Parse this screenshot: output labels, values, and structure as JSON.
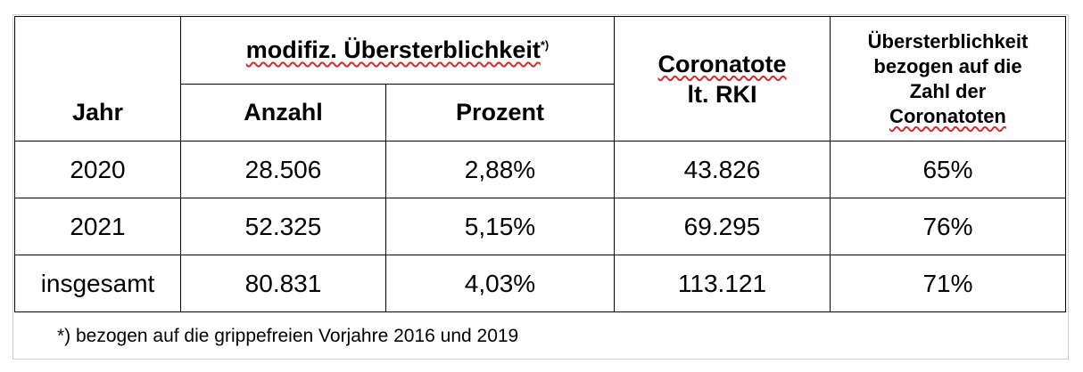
{
  "header": {
    "col_group": "modifiz. Übersterblichkeit",
    "col_group_mark": "*)",
    "jahr": "Jahr",
    "anzahl": "Anzahl",
    "prozent": "Prozent",
    "coronatote_line1": "Coronatote",
    "coronatote_line2": "lt. RKI",
    "ueber_line1": "Übersterblichkeit",
    "ueber_line2": "bezogen auf die",
    "ueber_line3": "Zahl der",
    "ueber_line4": "Coronatoten"
  },
  "rows": [
    {
      "jahr": "2020",
      "anzahl": "28.506",
      "prozent": "2,88%",
      "coronatote": "43.826",
      "anteil": "65%"
    },
    {
      "jahr": "2021",
      "anzahl": "52.325",
      "prozent": "5,15%",
      "coronatote": "69.295",
      "anteil": "76%"
    },
    {
      "jahr": "insgesamt",
      "anzahl": "80.831",
      "prozent": "4,03%",
      "coronatote": "113.121",
      "anteil": "71%"
    }
  ],
  "footnote": "*) bezogen auf die grippefreien Vorjahre 2016 und 2019"
}
